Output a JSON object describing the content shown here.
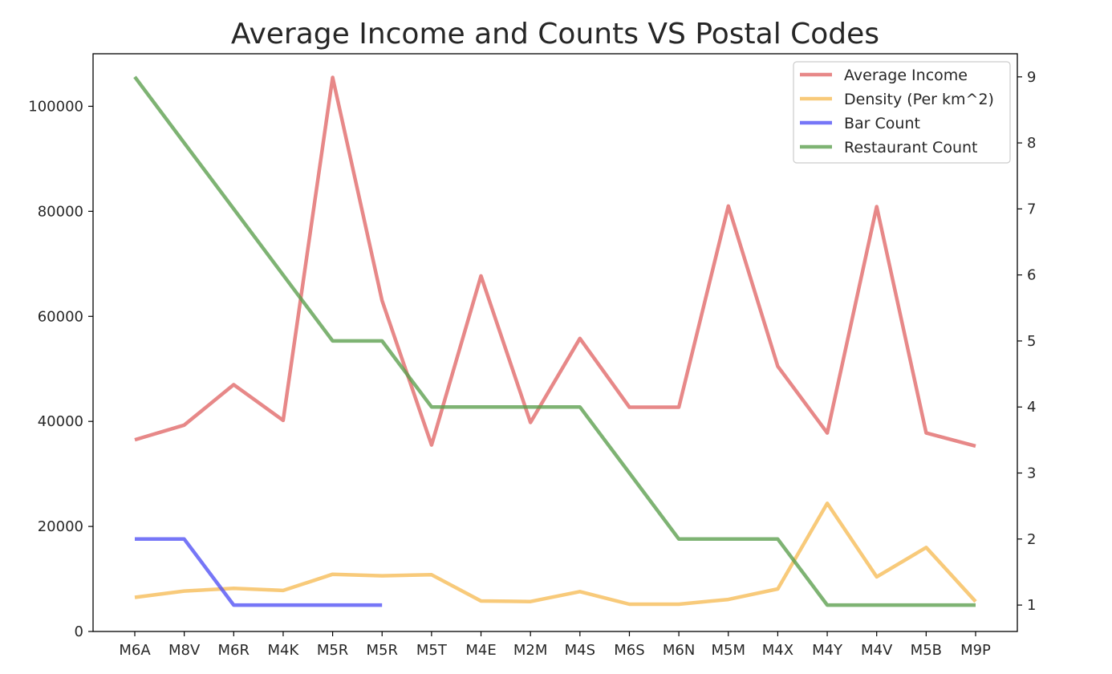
{
  "chart_data": {
    "type": "line",
    "title": "Average Income and Counts VS Postal Codes",
    "xlabel": "",
    "ylabel": "",
    "categories": [
      "M6A",
      "M8V",
      "M6R",
      "M4K",
      "M5R",
      "M5R",
      "M5T",
      "M4E",
      "M2M",
      "M4S",
      "M6S",
      "M6N",
      "M5M",
      "M4X",
      "M4Y",
      "M4V",
      "M5B",
      "M9P"
    ],
    "left_axis": {
      "ylim": [
        0,
        110000
      ],
      "ticks": [
        0,
        20000,
        40000,
        60000,
        80000,
        100000
      ],
      "tick_labels": [
        "0",
        "20000",
        "40000",
        "60000",
        "80000",
        "100000"
      ]
    },
    "right_axis": {
      "ylim": [
        0.6,
        9.35
      ],
      "ticks": [
        1,
        2,
        3,
        4,
        5,
        6,
        7,
        8,
        9
      ],
      "tick_labels": [
        "1",
        "2",
        "3",
        "4",
        "5",
        "6",
        "7",
        "8",
        "9"
      ]
    },
    "series": [
      {
        "name": "Average Income",
        "axis": "left",
        "color": "#e06666",
        "values": [
          36500,
          39300,
          47000,
          40200,
          105500,
          63000,
          35500,
          67700,
          39800,
          55800,
          42700,
          42700,
          81000,
          50500,
          37800,
          80900,
          37800,
          35300
        ]
      },
      {
        "name": "Density (Per km^2)",
        "axis": "left",
        "color": "#f6bb55",
        "values": [
          6500,
          7700,
          8200,
          7800,
          10900,
          10600,
          10800,
          5800,
          5700,
          7600,
          5200,
          5200,
          6100,
          8100,
          24400,
          10400,
          16000,
          5700
        ]
      },
      {
        "name": "Bar Count",
        "axis": "right",
        "color": "#4f4ff5",
        "values": [
          2,
          2,
          1,
          1,
          1,
          1,
          null,
          null,
          null,
          null,
          null,
          null,
          null,
          null,
          null,
          null,
          null,
          null
        ]
      },
      {
        "name": "Restaurant Count",
        "axis": "right",
        "color": "#5a9e4b",
        "values": [
          9,
          8,
          7,
          6,
          5,
          5,
          4,
          4,
          4,
          4,
          3,
          2,
          2,
          2,
          1,
          1,
          1,
          1
        ]
      }
    ],
    "legend": {
      "location": "top-right",
      "entries": [
        "Average Income",
        "Density (Per km^2)",
        "Bar Count",
        "Restaurant Count"
      ]
    },
    "grid": false
  }
}
